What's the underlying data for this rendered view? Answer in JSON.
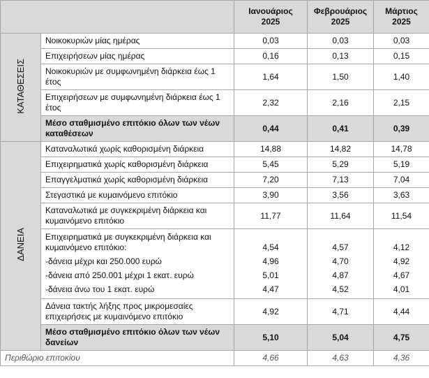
{
  "header": {
    "columns": [
      {
        "month": "Ιανουάριος",
        "year": "2025"
      },
      {
        "month": "Φεβρουάριος",
        "year": "2025"
      },
      {
        "month": "Μάρτιος",
        "year": "2025"
      }
    ]
  },
  "sections": [
    {
      "title": "ΚΑΤΑΘΕΣΕΙΣ",
      "rows": [
        {
          "label": "Νοικοκυριών μίας ημέρας",
          "values": [
            "0,03",
            "0,03",
            "0,03"
          ]
        },
        {
          "label": "Επιχειρήσεων μίας ημέρας",
          "values": [
            "0,16",
            "0,13",
            "0,15"
          ]
        },
        {
          "label": "Νοικοκυριών με συμφωνημένη διάρκεια έως 1 έτος",
          "values": [
            "1,64",
            "1,50",
            "1,40"
          ]
        },
        {
          "label": "Επιχειρήσεων με συμφωνημένη διάρκεια έως 1 έτος",
          "values": [
            "2,32",
            "2,16",
            "2,15"
          ]
        },
        {
          "label": "Μέσο σταθμισμένο επιτόκιο όλων των νέων καταθέσεων",
          "values": [
            "0,44",
            "0,41",
            "0,39"
          ],
          "bold": true
        }
      ]
    },
    {
      "title": "ΔΑΝΕΙΑ",
      "rows": [
        {
          "label": "Καταναλωτικά χωρίς καθορισμένη διάρκεια",
          "values": [
            "14,88",
            "14,82",
            "14,78"
          ]
        },
        {
          "label": "Επιχειρηματικά χωρίς καθορισμένη διάρκεια",
          "values": [
            "5,45",
            "5,29",
            "5,19"
          ]
        },
        {
          "label": "Επαγγελματικά χωρίς καθορισμένη διάρκεια",
          "values": [
            "7,20",
            "7,13",
            "7,04"
          ]
        },
        {
          "label": "Στεγαστικά με κυμαινόμενο επιτόκιο",
          "values": [
            "3,90",
            "3,56",
            "3,63"
          ]
        },
        {
          "label": "Καταναλωτικά με συγκεκριμένη διάρκεια και κυμαινόμενο επιτόκιο",
          "values": [
            "11,77",
            "11,64",
            "11,54"
          ]
        },
        {
          "label": "Επιχειρηματικά με συγκεκριμένη διάρκεια και κυμαινόμενο επιτόκιο:",
          "values": [
            "4,54",
            "4,57",
            "4,12"
          ],
          "subrows": [
            {
              "label": "-δάνεια μέχρι και 250.000 ευρώ",
              "values": [
                "4,96",
                "4,70",
                "4,92"
              ]
            },
            {
              "label": "-δάνεια από 250.001 μέχρι 1 εκατ. ευρώ",
              "values": [
                "5,01",
                "4,87",
                "4,67"
              ]
            },
            {
              "label": "-δάνεια άνω του 1 εκατ. ευρώ",
              "values": [
                "4,47",
                "4,52",
                "4,01"
              ]
            }
          ]
        },
        {
          "label": "Δάνεια τακτής λήξης προς μικρομεσαίες επιχειρήσεις με κυμαινόμενο επιτόκιο",
          "values": [
            "4,92",
            "4,71",
            "4,44"
          ]
        },
        {
          "label": "Μέσο σταθμισμένο επιτόκιο όλων των νέων δανείων",
          "values": [
            "5,10",
            "5,04",
            "4,75"
          ],
          "bold": true
        }
      ]
    }
  ],
  "footer": {
    "label": "Περιθώριο επιτοκίου",
    "values": [
      "4,66",
      "4,63",
      "4,36"
    ]
  }
}
